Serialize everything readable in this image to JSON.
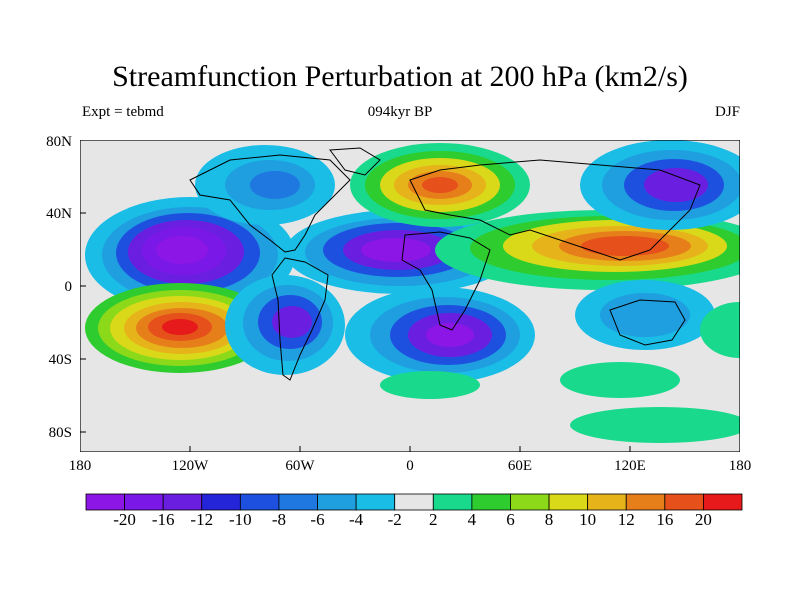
{
  "title": "Streamfunction Perturbation at 200 hPa (km2/s)",
  "subtitle_left": "Expt = tebmd",
  "subtitle_center": "094kyr BP",
  "subtitle_right": "DJF",
  "lat_labels": [
    "80N",
    "40N",
    "0",
    "40S",
    "80S"
  ],
  "lon_labels": [
    "180",
    "120W",
    "60W",
    "0",
    "60E",
    "120E",
    "180"
  ],
  "colorbar": {
    "colors": [
      "#8c16e6",
      "#7a18e8",
      "#6a1fe0",
      "#2424d8",
      "#1e50e0",
      "#1f78e0",
      "#1f9ee0",
      "#19bde6",
      "#e6e6e6",
      "#19d98c",
      "#2ecc2e",
      "#8cd91a",
      "#d9d91a",
      "#e6b41a",
      "#e67f1a",
      "#e6501a",
      "#e61a1a"
    ],
    "labels": [
      "-20",
      "-16",
      "-12",
      "-10",
      "-8",
      "-6",
      "-4",
      "-2",
      "2",
      "4",
      "6",
      "8",
      "10",
      "12",
      "16",
      "20"
    ]
  }
}
